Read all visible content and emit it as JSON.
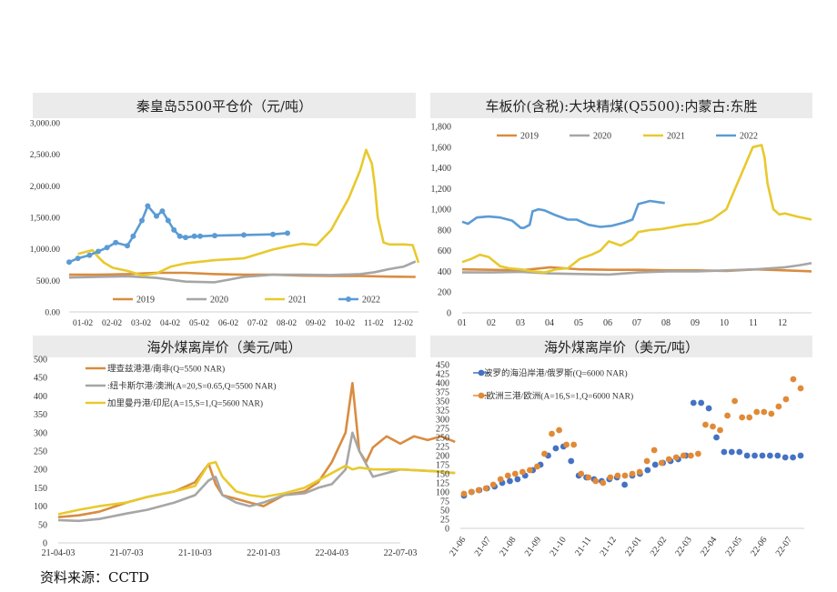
{
  "source": "资料来源：CCTD",
  "chart_data": [
    {
      "type": "line",
      "title": "秦皇岛5500平仓价（元/吨）",
      "categories": [
        "01-02",
        "02-02",
        "03-02",
        "04-02",
        "05-02",
        "06-02",
        "07-02",
        "08-02",
        "09-02",
        "10-02",
        "11-02",
        "12-02"
      ],
      "ylim": [
        0,
        3000
      ],
      "yticks": [
        "0.00",
        "500.00",
        "1,000.00",
        "1,500.00",
        "2,000.00",
        "2,500.00",
        "3,000.00"
      ],
      "legend_position": "bottom",
      "series": [
        {
          "name": "2019",
          "color": "#d98c3f",
          "x": [
            0,
            1,
            2,
            3,
            4,
            5,
            6,
            7,
            8,
            9,
            10,
            11,
            11.9
          ],
          "values": [
            590,
            590,
            600,
            620,
            620,
            600,
            590,
            590,
            575,
            570,
            570,
            560,
            555
          ]
        },
        {
          "name": "2020",
          "color": "#a6a6a6",
          "x": [
            0,
            1,
            2,
            3,
            4,
            5,
            6,
            7,
            8,
            9,
            10,
            10.5,
            11,
            11.5,
            11.9
          ],
          "values": [
            545,
            555,
            565,
            540,
            480,
            470,
            555,
            590,
            590,
            585,
            600,
            630,
            680,
            720,
            800
          ]
        },
        {
          "name": "2021",
          "color": "#e8c92e",
          "x": [
            0.3,
            0.8,
            1,
            1.2,
            1.5,
            2,
            2.5,
            3,
            3.5,
            4,
            5,
            6,
            6.5,
            7,
            7.5,
            8,
            8.5,
            9,
            9.3,
            9.6,
            10,
            10.2,
            10.4,
            10.5,
            10.6,
            10.8,
            11,
            11.5,
            11.8,
            12
          ],
          "values": [
            920,
            980,
            870,
            780,
            700,
            650,
            580,
            610,
            720,
            770,
            820,
            850,
            920,
            990,
            1040,
            1080,
            1060,
            1300,
            1550,
            1800,
            2250,
            2570,
            2350,
            2000,
            1500,
            1100,
            1070,
            1070,
            1060,
            780
          ]
        },
        {
          "name": "2022",
          "color": "#5b9bd5",
          "x": [
            0,
            0.3,
            0.7,
            1,
            1.3,
            1.6,
            2,
            2.2,
            2.5,
            2.7,
            3,
            3.2,
            3.4,
            3.6,
            3.8,
            4,
            4.3,
            4.5,
            5,
            6,
            7,
            7.5
          ],
          "values": [
            790,
            850,
            900,
            960,
            1020,
            1100,
            1050,
            1200,
            1450,
            1680,
            1520,
            1600,
            1450,
            1300,
            1200,
            1180,
            1200,
            1200,
            1210,
            1220,
            1230,
            1250
          ]
        }
      ]
    },
    {
      "type": "line",
      "title": "车板价(含税):大块精煤(Q5500):内蒙古:东胜",
      "categories": [
        "01",
        "02",
        "03",
        "04",
        "05",
        "06",
        "07",
        "08",
        "09",
        "10",
        "11",
        "12"
      ],
      "ylim": [
        0,
        1800
      ],
      "yticks": [
        "0",
        "200",
        "400",
        "600",
        "800",
        "1,000",
        "1,200",
        "1,400",
        "1,600",
        "1,800"
      ],
      "legend_position": "top",
      "series": [
        {
          "name": "2019",
          "color": "#d98c3f",
          "x": [
            0,
            1,
            2,
            3,
            4,
            5,
            6,
            7,
            8,
            9,
            10,
            11,
            11.9
          ],
          "values": [
            420,
            415,
            410,
            440,
            420,
            415,
            415,
            410,
            410,
            405,
            420,
            410,
            400
          ]
        },
        {
          "name": "2020",
          "color": "#a6a6a6",
          "x": [
            0,
            1,
            2,
            3,
            4,
            5,
            6,
            7,
            8,
            9,
            10,
            10.5,
            11,
            11.5,
            11.9
          ],
          "values": [
            390,
            390,
            395,
            380,
            375,
            370,
            390,
            400,
            400,
            410,
            420,
            430,
            440,
            460,
            480
          ]
        },
        {
          "name": "2021",
          "color": "#e8c92e",
          "x": [
            0,
            0.3,
            0.6,
            0.9,
            1.3,
            1.6,
            2,
            2.4,
            2.8,
            3.2,
            3.6,
            4,
            4.4,
            4.7,
            5,
            5.4,
            5.8,
            6,
            6.4,
            6.8,
            7.2,
            7.6,
            8,
            8.5,
            9,
            9.3,
            9.6,
            9.9,
            10.2,
            10.3,
            10.4,
            10.6,
            10.8,
            11,
            11.4,
            11.9
          ],
          "values": [
            490,
            520,
            560,
            540,
            450,
            430,
            420,
            400,
            390,
            420,
            430,
            520,
            560,
            600,
            690,
            650,
            710,
            780,
            800,
            810,
            830,
            850,
            860,
            900,
            1000,
            1200,
            1400,
            1600,
            1620,
            1500,
            1250,
            1000,
            950,
            960,
            930,
            900
          ]
        },
        {
          "name": "2022",
          "color": "#5b9bd5",
          "x": [
            0,
            0.2,
            0.5,
            0.9,
            1.3,
            1.7,
            2,
            2.1,
            2.3,
            2.4,
            2.6,
            2.8,
            3.2,
            3.6,
            3.9,
            4.3,
            4.7,
            5.1,
            5.5,
            5.8,
            6,
            6.4,
            6.9
          ],
          "values": [
            880,
            860,
            920,
            930,
            920,
            890,
            820,
            820,
            850,
            980,
            1000,
            990,
            940,
            900,
            900,
            850,
            830,
            840,
            870,
            900,
            1050,
            1080,
            1060
          ]
        }
      ]
    },
    {
      "type": "line",
      "title": "海外煤离岸价（美元/吨）",
      "categories": [
        "21-04-03",
        "21-07-03",
        "21-10-03",
        "22-01-03",
        "22-04-03",
        "22-07-03"
      ],
      "ylim": [
        0,
        500
      ],
      "yticks": [
        "0",
        "50",
        "100",
        "150",
        "200",
        "250",
        "300",
        "350",
        "400",
        "450",
        "500"
      ],
      "legend_position": "top-left",
      "series": [
        {
          "name": "理查兹港港/南非(Q=5500 NAR)",
          "color": "#d98c3f",
          "x": [
            0,
            0.3,
            0.6,
            1,
            1.3,
            1.7,
            2,
            2.2,
            2.3,
            2.4,
            2.6,
            2.8,
            3,
            3.3,
            3.6,
            3.8,
            4,
            4.2,
            4.3,
            4.4,
            4.5,
            4.6,
            4.8,
            5,
            5.2,
            5.4,
            5.6,
            5.8
          ],
          "values": [
            70,
            75,
            85,
            110,
            125,
            140,
            165,
            215,
            160,
            130,
            120,
            110,
            100,
            130,
            140,
            165,
            220,
            300,
            435,
            250,
            220,
            260,
            290,
            270,
            290,
            280,
            290,
            275
          ]
        },
        {
          "name": ":纽卡斯尔港/澳洲(A=20,S=0.65,Q=5500 NAR)",
          "color": "#a6a6a6",
          "x": [
            0,
            0.3,
            0.6,
            1,
            1.3,
            1.7,
            2,
            2.2,
            2.3,
            2.4,
            2.6,
            2.8,
            3,
            3.3,
            3.6,
            3.8,
            4,
            4.2,
            4.3,
            4.4,
            4.6,
            5,
            5.5,
            5.8
          ],
          "values": [
            62,
            60,
            65,
            80,
            90,
            110,
            130,
            170,
            180,
            130,
            110,
            100,
            110,
            130,
            135,
            150,
            160,
            200,
            300,
            250,
            180,
            200,
            195,
            190
          ]
        },
        {
          "name": "加里曼丹港/印尼(A=15,S=1,Q=5600 NAR)",
          "color": "#e8c92e",
          "x": [
            0,
            0.3,
            0.6,
            1,
            1.3,
            1.7,
            2,
            2.2,
            2.3,
            2.4,
            2.6,
            2.8,
            3,
            3.3,
            3.6,
            3.8,
            4,
            4.2,
            4.3,
            4.4,
            4.6,
            5,
            5.5,
            5.8
          ],
          "values": [
            78,
            90,
            100,
            110,
            125,
            140,
            155,
            215,
            220,
            180,
            140,
            130,
            125,
            135,
            150,
            170,
            190,
            210,
            200,
            205,
            200,
            200,
            195,
            190
          ]
        }
      ]
    },
    {
      "type": "scatter",
      "title": "海外煤离岸价（美元/吨）",
      "categories": [
        "21-06",
        "21-07",
        "21-08",
        "21-09",
        "21-10",
        "21-11",
        "21-12",
        "22-01",
        "22-02",
        "22-03",
        "22-04",
        "22-05",
        "22-06",
        "22-07"
      ],
      "ylim": [
        0,
        450
      ],
      "yticks": [
        "0",
        "25",
        "50",
        "75",
        "100",
        "125",
        "150",
        "175",
        "200",
        "225",
        "250",
        "275",
        "300",
        "325",
        "350",
        "375",
        "400",
        "425",
        "450"
      ],
      "legend_position": "top-left",
      "series": [
        {
          "name": "波罗的海沿岸港/俄罗斯(Q=6000 NAR)",
          "color": "#4472c4",
          "values": [
            90,
            100,
            105,
            110,
            115,
            125,
            130,
            135,
            145,
            160,
            175,
            200,
            220,
            225,
            185,
            145,
            140,
            135,
            130,
            135,
            140,
            120,
            145,
            150,
            160,
            175,
            180,
            185,
            190,
            200,
            345,
            345,
            330,
            250,
            210,
            210,
            210,
            200,
            200,
            200,
            200,
            200,
            195,
            195,
            200
          ]
        },
        {
          "name": ":欧洲三港/欧洲(A=16,S=1,Q=6000 NAR)",
          "color": "#e08a37",
          "values": [
            95,
            100,
            105,
            110,
            120,
            135,
            145,
            150,
            155,
            160,
            170,
            205,
            260,
            270,
            230,
            230,
            150,
            140,
            130,
            125,
            140,
            145,
            145,
            150,
            155,
            185,
            215,
            180,
            190,
            195,
            200,
            200,
            205,
            285,
            280,
            270,
            310,
            350,
            305,
            305,
            320,
            320,
            315,
            335,
            355,
            410,
            385
          ]
        }
      ]
    }
  ]
}
